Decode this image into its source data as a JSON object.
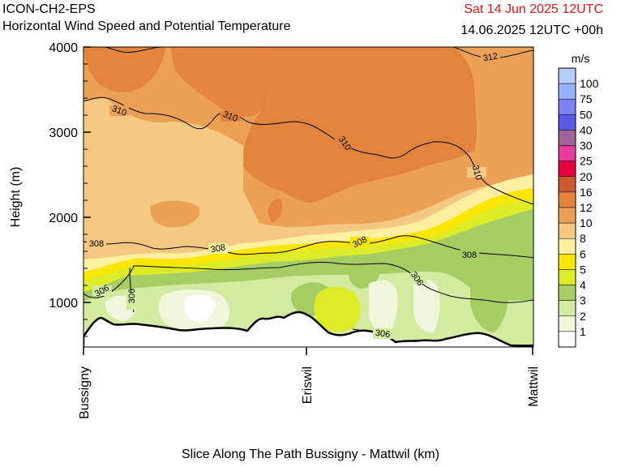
{
  "header": {
    "model": "ICON-CH2-EPS",
    "title": "Horizontal Wind Speed and Potential Temperature",
    "valid_date": "Sat 14 Jun 2025 12UTC",
    "run": "14.06.2025 12UTC +00h"
  },
  "colors": {
    "date_text": "#e8161a",
    "terrain_line": "#000000"
  },
  "chart_data": {
    "type": "heatmap",
    "title": "Horizontal Wind Speed and Potential Temperature",
    "xlabel": "Slice Along The Path Bussigny - Mattwil (km)",
    "ylabel": "Height (m)",
    "ylim": [
      500,
      4000
    ],
    "y_ticks": [
      "1000",
      "2000",
      "3000",
      "4000"
    ],
    "x_ticks": [
      {
        "label": "Bussigny",
        "pos": 0
      },
      {
        "label": "Eriswil",
        "pos": 0.5
      },
      {
        "label": "Mattwil",
        "pos": 1
      }
    ],
    "colorbar": {
      "unit": "m/s",
      "levels": [
        {
          "label": "100",
          "color": "#b4cdfa"
        },
        {
          "label": "75",
          "color": "#96afff"
        },
        {
          "label": "50",
          "color": "#7c82f6"
        },
        {
          "label": "40",
          "color": "#5a5ae6"
        },
        {
          "label": "30",
          "color": "#a0649b"
        },
        {
          "label": "25",
          "color": "#e63c9b"
        },
        {
          "label": "20",
          "color": "#e6003c"
        },
        {
          "label": "16",
          "color": "#cd5a32"
        },
        {
          "label": "12",
          "color": "#e3843c"
        },
        {
          "label": "10",
          "color": "#eba055"
        },
        {
          "label": "8",
          "color": "#f5c882"
        },
        {
          "label": "6",
          "color": "#fff0a0"
        },
        {
          "label": "5",
          "color": "#fae600"
        },
        {
          "label": "4",
          "color": "#dcea28"
        },
        {
          "label": "3",
          "color": "#a5cd64"
        },
        {
          "label": "2",
          "color": "#d2eba0"
        },
        {
          "label": "1",
          "color": "#f0f5dc"
        },
        {
          "label": "",
          "color": "#ffffff"
        }
      ]
    },
    "contour_labels": [
      "306",
      "306",
      "306",
      "306",
      "308",
      "308",
      "308",
      "308",
      "310",
      "310",
      "310",
      "310",
      "312"
    ]
  }
}
